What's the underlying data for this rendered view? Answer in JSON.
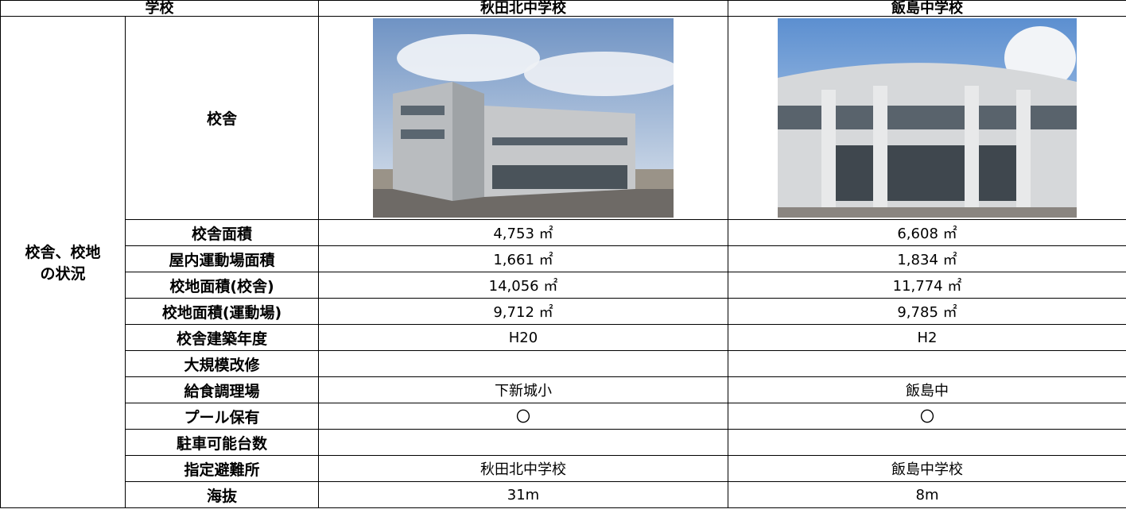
{
  "table": {
    "header": [
      "学校",
      "秋田北中学校",
      "飯島中学校"
    ],
    "section": "校舎、校地の状況",
    "photo_row": "校舎",
    "rows": [
      {
        "label": "校舎面積",
        "values": [
          "4,753 ㎡",
          "6,608 ㎡"
        ]
      },
      {
        "label": "屋内運動場面積",
        "values": [
          "1,661 ㎡",
          "1,834 ㎡"
        ]
      },
      {
        "label": "校地面積(校舎)",
        "values": [
          "14,056 ㎡",
          "11,774 ㎡"
        ]
      },
      {
        "label": "校地面積(運動場)",
        "values": [
          "9,712 ㎡",
          "9,785 ㎡"
        ]
      },
      {
        "label": "校舎建築年度",
        "values": [
          "H20",
          "H2"
        ]
      },
      {
        "label": "大規模改修"
      },
      {
        "label": "給食調理場",
        "values": [
          "下新城小",
          "飯島中"
        ]
      },
      {
        "label": "プール保有",
        "values": [
          "〇",
          "〇"
        ]
      },
      {
        "label": "駐車可能台数"
      },
      {
        "label": "指定避難所",
        "values": [
          "秋田北中学校",
          "飯島中学校"
        ]
      },
      {
        "label": "海抜",
        "values": [
          "31m",
          "8m"
        ]
      }
    ]
  }
}
